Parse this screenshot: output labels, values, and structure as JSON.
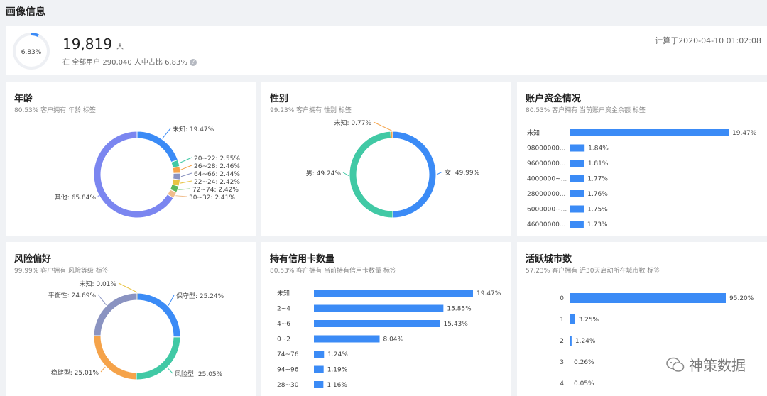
{
  "page": {
    "title": "画像信息"
  },
  "summary": {
    "percent_label": "6.83%",
    "percent_value": 6.83,
    "count": "19,819",
    "unit": "人",
    "detail": "在 全部用户 290,040 人中占比 6.83%",
    "help_icon": "question-circle-icon",
    "calculated_at": "计算于2020-04-10 01:02:08"
  },
  "colors": {
    "blue": "#3b8bf6",
    "purple": "#7b86f0",
    "teal": "#41c9a5",
    "orange": "#f5a34a",
    "slate": "#8a93c1",
    "yellow": "#e8c342",
    "green": "#5cb85c",
    "peach": "#f0bd8c"
  },
  "watermark": {
    "text": "神策数据",
    "icon": "wechat-icon"
  },
  "chart_data": [
    {
      "id": "age",
      "type": "pie",
      "title": "年龄",
      "subtitle": "80.53% 客户拥有 年龄 标签",
      "slices": [
        {
          "label": "未知: 19.47%",
          "value": 19.47,
          "color": "#3b8bf6"
        },
        {
          "label": "20~22: 2.55%",
          "value": 2.55,
          "color": "#41c9a5"
        },
        {
          "label": "26~28: 2.46%",
          "value": 2.46,
          "color": "#f5a34a"
        },
        {
          "label": "64~66: 2.44%",
          "value": 2.44,
          "color": "#8a93c1"
        },
        {
          "label": "22~24: 2.42%",
          "value": 2.42,
          "color": "#e8c342"
        },
        {
          "label": "72~74: 2.42%",
          "value": 2.42,
          "color": "#5cb85c"
        },
        {
          "label": "30~32: 2.41%",
          "value": 2.41,
          "color": "#f0bd8c"
        },
        {
          "label": "其他: 65.84%",
          "value": 65.84,
          "color": "#7b86f0"
        }
      ]
    },
    {
      "id": "gender",
      "type": "pie",
      "title": "性别",
      "subtitle": "99.23% 客户拥有 性别 标签",
      "slices": [
        {
          "label": "女: 49.99%",
          "value": 49.99,
          "color": "#3b8bf6"
        },
        {
          "label": "男: 49.24%",
          "value": 49.24,
          "color": "#41c9a5"
        },
        {
          "label": "未知: 0.77%",
          "value": 0.77,
          "color": "#f5a34a"
        }
      ]
    },
    {
      "id": "balance",
      "type": "bar",
      "title": "账户资金情况",
      "subtitle": "80.53% 客户拥有 当前账户资金余额 标签",
      "categories": [
        "未知",
        "98000000...",
        "96000000...",
        "4000000~...",
        "28000000...",
        "6000000~...",
        "46000000..."
      ],
      "values": [
        19.47,
        1.84,
        1.81,
        1.77,
        1.76,
        1.75,
        1.73
      ],
      "value_labels": [
        "19.47%",
        "1.84%",
        "1.81%",
        "1.77%",
        "1.76%",
        "1.75%",
        "1.73%"
      ]
    },
    {
      "id": "risk",
      "type": "pie",
      "title": "风险偏好",
      "subtitle": "99.99% 客户拥有 风险等级 标签",
      "slices": [
        {
          "label": "保守型: 25.24%",
          "value": 25.24,
          "color": "#3b8bf6"
        },
        {
          "label": "风险型: 25.05%",
          "value": 25.05,
          "color": "#41c9a5"
        },
        {
          "label": "稳健型: 25.01%",
          "value": 25.01,
          "color": "#f5a34a"
        },
        {
          "label": "平衡性: 24.69%",
          "value": 24.69,
          "color": "#8a93c1"
        },
        {
          "label": "未知: 0.01%",
          "value": 0.01,
          "color": "#e8c342"
        }
      ]
    },
    {
      "id": "cards",
      "type": "bar",
      "title": "持有信用卡数量",
      "subtitle": "80.53% 客户拥有 当前持有信用卡数量 标签",
      "categories": [
        "未知",
        "2~4",
        "4~6",
        "0~2",
        "74~76",
        "94~96",
        "28~30"
      ],
      "values": [
        19.47,
        15.85,
        15.43,
        8.04,
        1.24,
        1.19,
        1.16
      ],
      "value_labels": [
        "19.47%",
        "15.85%",
        "15.43%",
        "8.04%",
        "1.24%",
        "1.19%",
        "1.16%"
      ]
    },
    {
      "id": "cities",
      "type": "bar",
      "title": "活跃城市数",
      "subtitle": "57.23% 客户拥有 近30天启动所在城市数 标签",
      "categories": [
        "0",
        "1",
        "2",
        "3",
        "4"
      ],
      "values": [
        95.2,
        3.25,
        1.24,
        0.26,
        0.05
      ],
      "value_labels": [
        "95.20%",
        "3.25%",
        "1.24%",
        "0.26%",
        "0.05%"
      ]
    }
  ]
}
